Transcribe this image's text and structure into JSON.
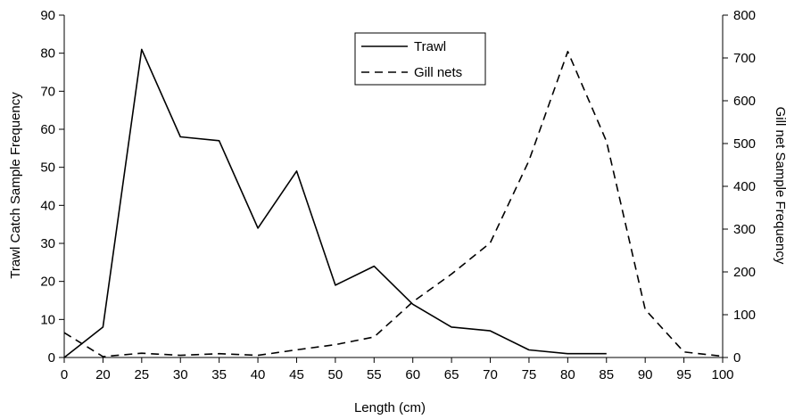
{
  "chart_data": {
    "type": "line",
    "xlabel": "Length (cm)",
    "ylabel_left": "Trawl Catch Sample Frequency",
    "ylabel_right": "Gill net Sample Frequency",
    "x_ticks": [
      0,
      20,
      25,
      30,
      35,
      40,
      45,
      50,
      55,
      60,
      65,
      70,
      75,
      80,
      85,
      90,
      95,
      100
    ],
    "ylim_left": [
      0,
      90
    ],
    "ylim_right": [
      0,
      800
    ],
    "yticks_left": [
      0,
      10,
      20,
      30,
      40,
      50,
      60,
      70,
      80,
      90
    ],
    "yticks_right": [
      0,
      100,
      200,
      300,
      400,
      500,
      600,
      700,
      800
    ],
    "grid": false,
    "legend_position": "top-center",
    "series": [
      {
        "name": "Trawl",
        "axis": "left",
        "style": "solid",
        "x": [
          0,
          20,
          25,
          30,
          35,
          40,
          45,
          50,
          55,
          60,
          65,
          70,
          75,
          80,
          85
        ],
        "values": [
          0,
          8,
          81,
          58,
          57,
          34,
          49,
          19,
          24,
          14,
          8,
          7,
          2,
          1,
          1
        ]
      },
      {
        "name": "Gill nets",
        "axis": "right",
        "style": "dashed",
        "x": [
          0,
          20,
          25,
          30,
          35,
          40,
          45,
          50,
          55,
          60,
          65,
          70,
          75,
          80,
          85,
          90,
          95,
          100
        ],
        "values": [
          58,
          2,
          10,
          5,
          9,
          5,
          18,
          30,
          48,
          130,
          195,
          268,
          460,
          715,
          505,
          112,
          13,
          3
        ]
      }
    ]
  }
}
